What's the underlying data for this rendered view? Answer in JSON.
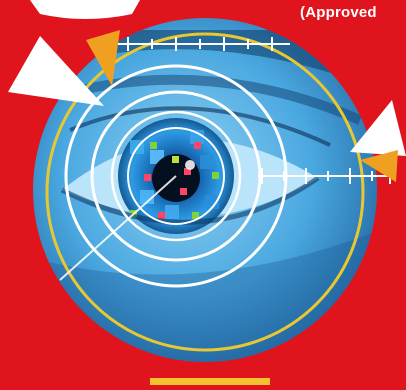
{
  "badge": {
    "text": "(Approved"
  },
  "colors": {
    "background": "#e0141c",
    "ring": "#ffffff",
    "outer_ring": "#e8c832",
    "pointer": "#ffffff",
    "pointer_accent": "#f0a020",
    "iris": "#1e88d8"
  }
}
